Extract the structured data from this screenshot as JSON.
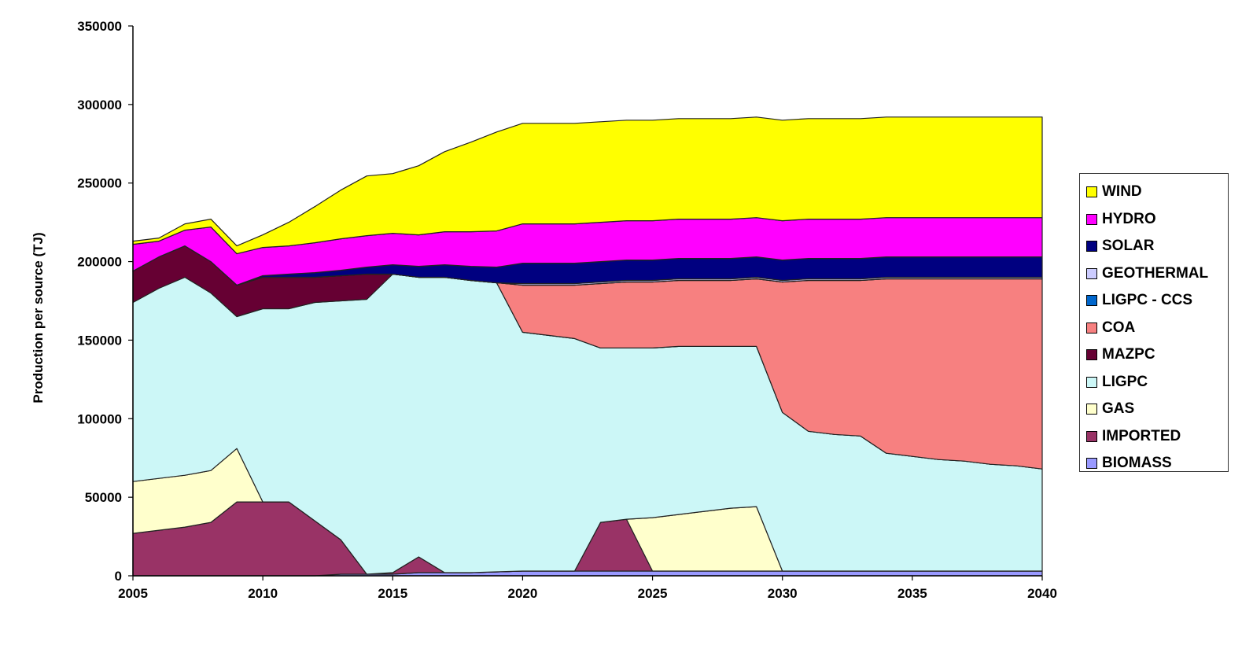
{
  "chart_data": {
    "type": "area",
    "stacked": true,
    "title": "",
    "xlabel": "",
    "ylabel": "Production per source  (TJ)",
    "xlim": [
      2005,
      2040
    ],
    "ylim": [
      0,
      350000
    ],
    "x_ticks": [
      "2005",
      "2010",
      "2015",
      "2020",
      "2025",
      "2030",
      "2035",
      "2040"
    ],
    "y_ticks": [
      "0",
      "50000",
      "100000",
      "150000",
      "200000",
      "250000",
      "300000",
      "350000"
    ],
    "legend_position": "right",
    "grid": false,
    "x": [
      2005,
      2006,
      2007,
      2008,
      2009,
      2010,
      2011,
      2012,
      2013,
      2014,
      2015,
      2016,
      2017,
      2018,
      2019,
      2020,
      2021,
      2022,
      2023,
      2024,
      2025,
      2026,
      2027,
      2028,
      2029,
      2030,
      2031,
      2032,
      2033,
      2034,
      2035,
      2036,
      2037,
      2038,
      2039,
      2040
    ],
    "series": [
      {
        "name": "BIOMASS",
        "color": "#9999ff",
        "values": [
          0,
          0,
          0,
          0,
          0,
          0,
          0,
          0,
          1000,
          1000,
          1000,
          2000,
          2000,
          2000,
          2500,
          3000,
          3000,
          3000,
          3000,
          3000,
          3000,
          3000,
          3000,
          3000,
          3000,
          3000,
          3000,
          3000,
          3000,
          3000,
          3000,
          3000,
          3000,
          3000,
          3000,
          3000
        ]
      },
      {
        "name": "IMPORTED",
        "color": "#993366",
        "values": [
          27000,
          29000,
          31000,
          34000,
          47000,
          47000,
          47000,
          35000,
          22000,
          0,
          1000,
          10000,
          0,
          0,
          0,
          0,
          0,
          0,
          31000,
          33000,
          0,
          0,
          0,
          0,
          0,
          0,
          0,
          0,
          0,
          0,
          0,
          0,
          0,
          0,
          0,
          0
        ]
      },
      {
        "name": "GAS",
        "color": "#ffffcc",
        "values": [
          33000,
          33000,
          33000,
          33000,
          34000,
          0,
          0,
          0,
          0,
          0,
          0,
          0,
          0,
          0,
          0,
          0,
          0,
          0,
          0,
          0,
          34000,
          36000,
          38000,
          40000,
          41000,
          0,
          0,
          0,
          0,
          0,
          0,
          0,
          0,
          0,
          0,
          0
        ]
      },
      {
        "name": "LIGPC",
        "color": "#ccf7f7",
        "values": [
          114000,
          121000,
          126000,
          113000,
          84000,
          123000,
          123000,
          139000,
          152000,
          175000,
          190000,
          178000,
          188000,
          186000,
          184000,
          152000,
          150000,
          148000,
          111000,
          109000,
          108000,
          107000,
          105000,
          103000,
          102000,
          101000,
          89000,
          87000,
          86000,
          75000,
          73000,
          71000,
          70000,
          68000,
          67000,
          65000
        ]
      },
      {
        "name": "MAZPC",
        "color": "#660033",
        "values": [
          20000,
          20000,
          20000,
          20000,
          20000,
          20000,
          20000,
          16000,
          16000,
          16000,
          0,
          0,
          0,
          0,
          0,
          0,
          0,
          0,
          0,
          0,
          0,
          0,
          0,
          0,
          0,
          0,
          0,
          0,
          0,
          0,
          0,
          0,
          0,
          0,
          0,
          0
        ]
      },
      {
        "name": "COA",
        "color": "#f78080",
        "values": [
          0,
          0,
          0,
          0,
          0,
          0,
          0,
          0,
          0,
          0,
          0,
          0,
          0,
          0,
          0,
          30000,
          32000,
          34000,
          41000,
          42000,
          42000,
          42000,
          42000,
          42000,
          43000,
          83000,
          96000,
          98000,
          99000,
          111000,
          113000,
          115000,
          116000,
          118000,
          119000,
          121000
        ]
      },
      {
        "name": "LIGPC - CCS",
        "color": "#0066cc",
        "values": [
          0,
          0,
          0,
          0,
          0,
          0,
          0,
          0,
          0,
          0,
          0,
          0,
          0,
          0,
          0,
          0,
          0,
          0,
          0,
          0,
          0,
          0,
          0,
          0,
          0,
          0,
          0,
          0,
          0,
          0,
          0,
          0,
          0,
          0,
          0,
          0
        ]
      },
      {
        "name": "GEOTHERMAL",
        "color": "#ccccff",
        "values": [
          0,
          0,
          0,
          0,
          0,
          0,
          0,
          0,
          0,
          0,
          0,
          0,
          0,
          0,
          0,
          1000,
          1000,
          1000,
          1000,
          1000,
          1000,
          1000,
          1000,
          1000,
          1000,
          1000,
          1000,
          1000,
          1000,
          1000,
          1000,
          1000,
          1000,
          1000,
          1000,
          1000
        ]
      },
      {
        "name": "SOLAR",
        "color": "#000080",
        "values": [
          0,
          0,
          0,
          0,
          0,
          1000,
          2000,
          3000,
          3500,
          4500,
          6000,
          7000,
          8000,
          9000,
          10000,
          13000,
          13000,
          13000,
          13000,
          13000,
          13000,
          13000,
          13000,
          13000,
          13000,
          13000,
          13000,
          13000,
          13000,
          13000,
          13000,
          13000,
          13000,
          13000,
          13000,
          13000
        ]
      },
      {
        "name": "HYDRO",
        "color": "#ff00ff",
        "values": [
          17000,
          10000,
          10000,
          22000,
          20000,
          18000,
          18000,
          19000,
          20000,
          20000,
          20000,
          20000,
          21000,
          22000,
          23000,
          25000,
          25000,
          25000,
          25000,
          25000,
          25000,
          25000,
          25000,
          25000,
          25000,
          25000,
          25000,
          25000,
          25000,
          25000,
          25000,
          25000,
          25000,
          25000,
          25000,
          25000
        ]
      },
      {
        "name": "WIND",
        "color": "#ffff00",
        "values": [
          2000,
          2000,
          4000,
          5000,
          5000,
          8000,
          15000,
          23000,
          31000,
          38000,
          38000,
          44000,
          51000,
          57000,
          63000,
          64000,
          64000,
          64000,
          64000,
          64000,
          64000,
          64000,
          64000,
          64000,
          64000,
          64000,
          64000,
          64000,
          64000,
          64000,
          64000,
          64000,
          64000,
          64000,
          64000,
          64000
        ]
      }
    ],
    "legend": [
      "WIND",
      "HYDRO",
      "SOLAR",
      "GEOTHERMAL",
      "LIGPC - CCS",
      "COA",
      "MAZPC",
      "LIGPC",
      "GAS",
      "IMPORTED",
      "BIOMASS"
    ]
  }
}
